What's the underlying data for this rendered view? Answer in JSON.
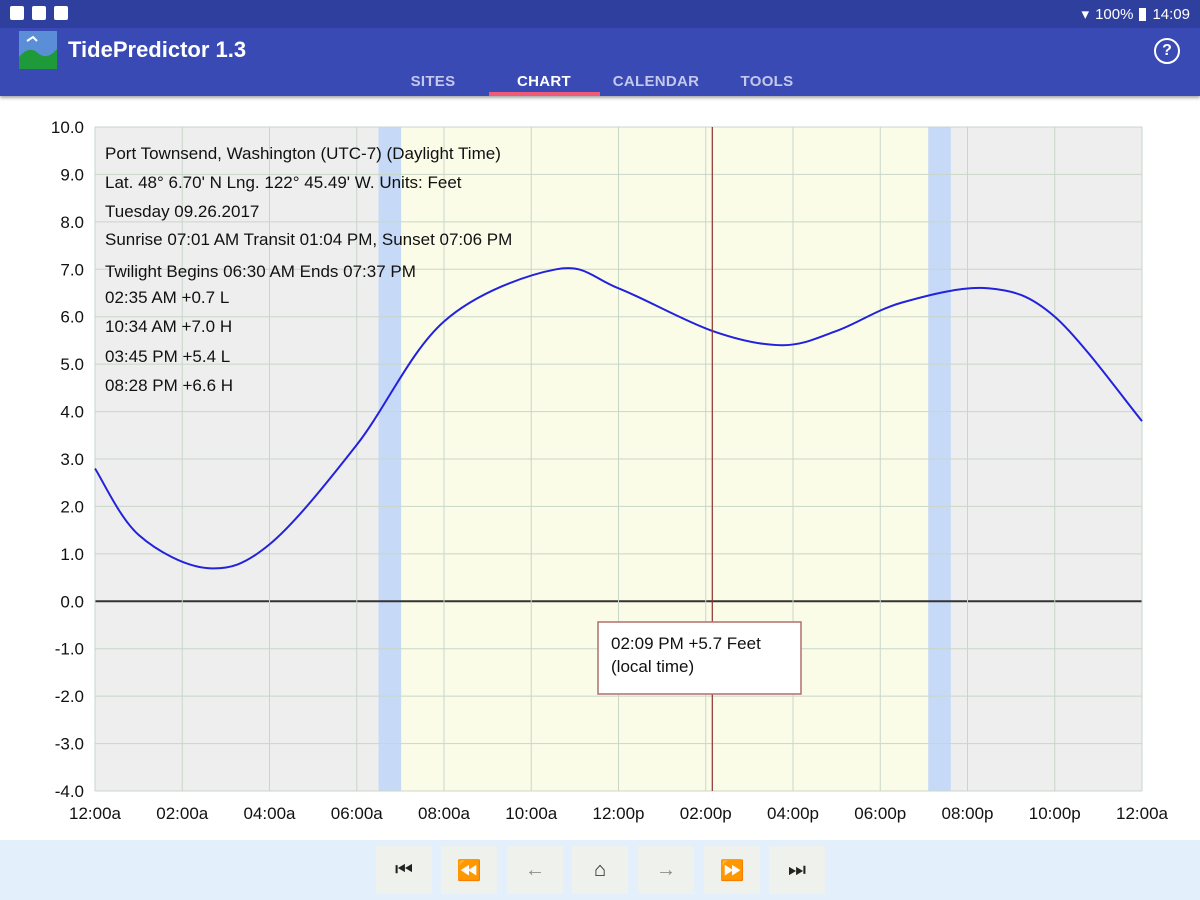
{
  "status_bar": {
    "battery": "100%",
    "time": "14:09",
    "icons": [
      "image-icon",
      "app-icon",
      "cloud-icon",
      "wifi-icon",
      "battery-icon"
    ]
  },
  "app": {
    "title": "TidePredictor 1.3",
    "help_icon": "help-icon"
  },
  "tabs": [
    {
      "label": "SITES"
    },
    {
      "label": "CHART",
      "active": true
    },
    {
      "label": "CALENDAR"
    },
    {
      "label": "TOOLS"
    }
  ],
  "info": {
    "location": "Port Townsend, Washington (UTC-7) (Daylight Time)",
    "coords": "Lat. 48° 6.70' N Lng. 122° 45.49' W. Units: Feet",
    "date": "Tuesday 09.26.2017",
    "sun": "Sunrise 07:01 AM  Transit 01:04 PM, Sunset 07:06 PM",
    "twilight": "Twilight Begins 06:30 AM  Ends 07:37 PM",
    "tides": [
      "02:35 AM  +0.7 L",
      "10:34 AM  +7.0 H",
      "03:45 PM  +5.4 L",
      "08:28 PM  +6.6 H"
    ]
  },
  "tooltip": {
    "line1": "02:09 PM +5.7 Feet",
    "line2": "(local time)"
  },
  "chart_data": {
    "type": "line",
    "ylim": [
      -4.0,
      10.0
    ],
    "xlim": [
      0,
      24
    ],
    "y_ticks": [
      "10.0",
      "9.0",
      "8.0",
      "7.0",
      "6.0",
      "5.0",
      "4.0",
      "3.0",
      "2.0",
      "1.0",
      "0.0",
      "-1.0",
      "-2.0",
      "-3.0",
      "-4.0"
    ],
    "x_ticks": [
      "12:00a",
      "02:00a",
      "04:00a",
      "06:00a",
      "08:00a",
      "10:00a",
      "12:00p",
      "02:00p",
      "04:00p",
      "06:00p",
      "08:00p",
      "10:00p",
      "12:00a"
    ],
    "grid": true,
    "twilight_start_h": 6.5,
    "sunrise_h": 7.017,
    "sunset_h": 19.1,
    "twilight_end_h": 19.617,
    "cursor_h": 14.15,
    "series": [
      {
        "color": "#2222dd",
        "x": [
          0.0,
          1.0,
          2.58,
          4.0,
          6.0,
          8.0,
          10.57,
          12.0,
          14.15,
          15.75,
          17.0,
          18.5,
          20.47,
          22.0,
          24.0
        ],
        "y": [
          2.8,
          1.4,
          0.7,
          1.2,
          3.3,
          5.9,
          7.0,
          6.6,
          5.7,
          5.4,
          5.7,
          6.3,
          6.6,
          6.0,
          3.8
        ]
      }
    ]
  },
  "nav": [
    {
      "name": "first-icon",
      "glyph": "⏮",
      "enabled": true
    },
    {
      "name": "rewind-icon",
      "glyph": "⏪",
      "enabled": true
    },
    {
      "name": "back-arrow-icon",
      "glyph": "←",
      "enabled": false
    },
    {
      "name": "home-icon",
      "glyph": "⌂",
      "enabled": true
    },
    {
      "name": "forward-arrow-icon",
      "glyph": "→",
      "enabled": false
    },
    {
      "name": "fast-forward-icon",
      "glyph": "⏩",
      "enabled": true
    },
    {
      "name": "last-icon",
      "glyph": "⏭",
      "enabled": true
    }
  ],
  "colors": {
    "plot_bg": "#eeeeee",
    "daylight": "#fbfce8",
    "twilight": "#c6daf8",
    "grid": "#c8d6c8",
    "zero_line": "#333333",
    "cursor": "#8a3030"
  }
}
